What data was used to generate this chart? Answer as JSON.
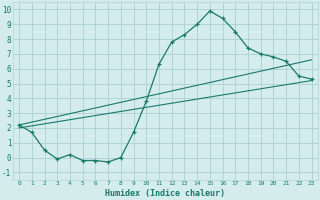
{
  "title": "",
  "xlabel": "Humidex (Indice chaleur)",
  "ylabel": "",
  "bg_color": "#d4ecec",
  "line_color": "#1a7a6a",
  "grid_color": "#b0d4d4",
  "xlim": [
    -0.5,
    23.5
  ],
  "ylim": [
    -1.5,
    10.5
  ],
  "xticks": [
    0,
    1,
    2,
    3,
    4,
    5,
    6,
    7,
    8,
    9,
    10,
    11,
    12,
    13,
    14,
    15,
    16,
    17,
    18,
    19,
    20,
    21,
    22,
    23
  ],
  "yticks": [
    -1,
    0,
    1,
    2,
    3,
    4,
    5,
    6,
    7,
    8,
    9,
    10
  ],
  "curve1_x": [
    0,
    1,
    2,
    3,
    4,
    5,
    6,
    7,
    8,
    9,
    10,
    11,
    12,
    13,
    14,
    15,
    16,
    17,
    18,
    19,
    20,
    21,
    22,
    23
  ],
  "curve1_y": [
    2.2,
    1.7,
    0.5,
    -0.1,
    0.2,
    -0.2,
    -0.2,
    -0.3,
    0.0,
    1.7,
    3.8,
    6.3,
    7.8,
    8.3,
    9.0,
    9.9,
    9.4,
    8.5,
    7.4,
    7.0,
    6.8,
    6.5,
    5.5,
    5.3
  ],
  "line1_x": [
    0,
    23
  ],
  "line1_y": [
    2.2,
    6.6
  ],
  "line2_x": [
    0,
    23
  ],
  "line2_y": [
    2.0,
    5.2
  ]
}
